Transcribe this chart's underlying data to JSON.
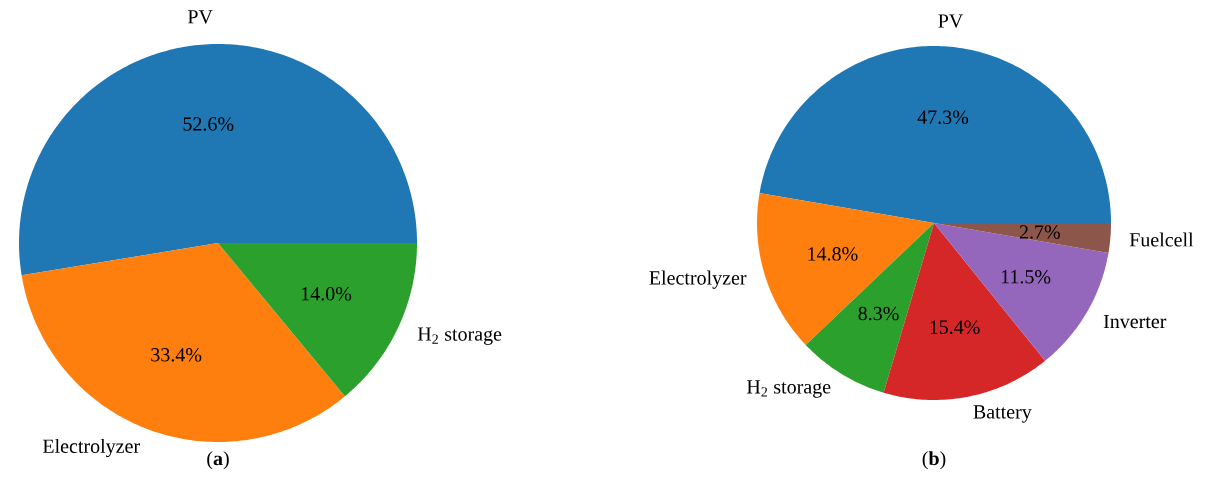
{
  "chart_data": [
    {
      "type": "pie",
      "categories": [
        "PV",
        "Electrolyzer",
        "H$_{2}$ storage"
      ],
      "values": [
        52.6,
        33.4,
        14.0
      ],
      "colors": [
        "#1f77b4",
        "#ff7f0e",
        "#2ca02c"
      ],
      "value_labels": [
        "52.6%",
        "33.4%",
        "14.0%"
      ],
      "annotations": [
        "(**a**)"
      ]
    },
    {
      "type": "pie",
      "categories": [
        "PV",
        "Electrolyzer",
        "H$_{2}$ storage",
        "Battery",
        "Inverter",
        "Fuelcell"
      ],
      "values": [
        47.3,
        14.8,
        8.3,
        15.4,
        11.5,
        2.7
      ],
      "colors": [
        "#1f77b4",
        "#ff7f0e",
        "#2ca02c",
        "#d62728",
        "#9467bd",
        "#8c564b"
      ],
      "value_labels": [
        "47.3%",
        "14.8%",
        "8.3%",
        "15.4%",
        "11.5%",
        "2.7%"
      ],
      "annotations": [
        "(**b**)"
      ]
    }
  ]
}
